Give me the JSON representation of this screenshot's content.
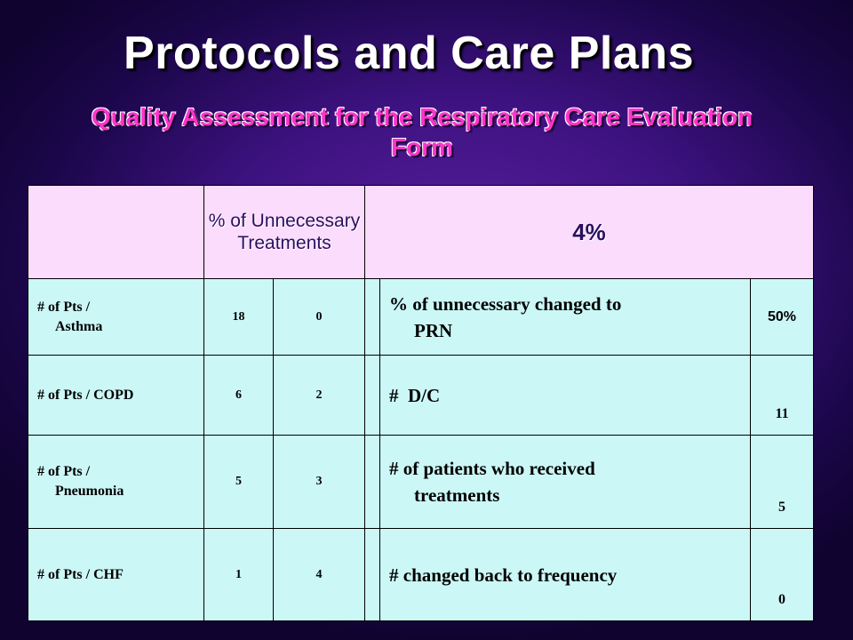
{
  "slide": {
    "title": "Protocols and Care Plans",
    "subtitle": "Quality Assessment for the Respiratory Care Evaluation Form"
  },
  "table": {
    "header": {
      "metric_label": "% of Unnecessary Treatments",
      "metric_value": "4%"
    },
    "rows": [
      {
        "label_line1": "# of Pts /",
        "label_line2": "Asthma",
        "count_a": "18",
        "count_b": "0",
        "desc_line1": "% of unnecessary changed to",
        "desc_line2": "PRN",
        "value": "50%"
      },
      {
        "label_line1": "# of Pts / COPD",
        "label_line2": "",
        "count_a": "6",
        "count_b": "2",
        "desc_line1": "#  D/C",
        "desc_line2": "",
        "value": "11"
      },
      {
        "label_line1": "# of Pts /",
        "label_line2": "Pneumonia",
        "count_a": "5",
        "count_b": "3",
        "desc_line1": "# of patients who received",
        "desc_line2": "treatments",
        "value": "5"
      },
      {
        "label_line1": "# of Pts / CHF",
        "label_line2": "",
        "count_a": "1",
        "count_b": "4",
        "desc_line1": "# changed back to frequency",
        "desc_line2": "",
        "value": "0"
      }
    ]
  },
  "colors": {
    "background": "#3d1280",
    "title": "#ffffff",
    "subtitle": "#ff33cc",
    "header_fill": "#fcdcfc",
    "body_fill": "#ccf7f7"
  }
}
